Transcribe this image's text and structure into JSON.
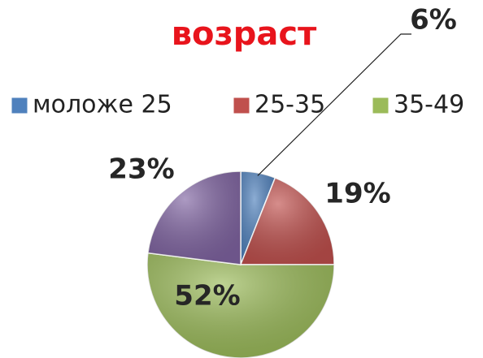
{
  "chart_data": {
    "type": "pie",
    "title": "возраст",
    "categories": [
      "моложе 25",
      "25-35",
      "35-49",
      null
    ],
    "values": [
      6,
      19,
      52,
      23
    ],
    "value_labels": [
      "6%",
      "19%",
      "52%",
      "23%"
    ],
    "colors": [
      "#4f81bd",
      "#c0504d",
      "#9bbb59",
      "#8064a2"
    ],
    "legend": "top"
  }
}
